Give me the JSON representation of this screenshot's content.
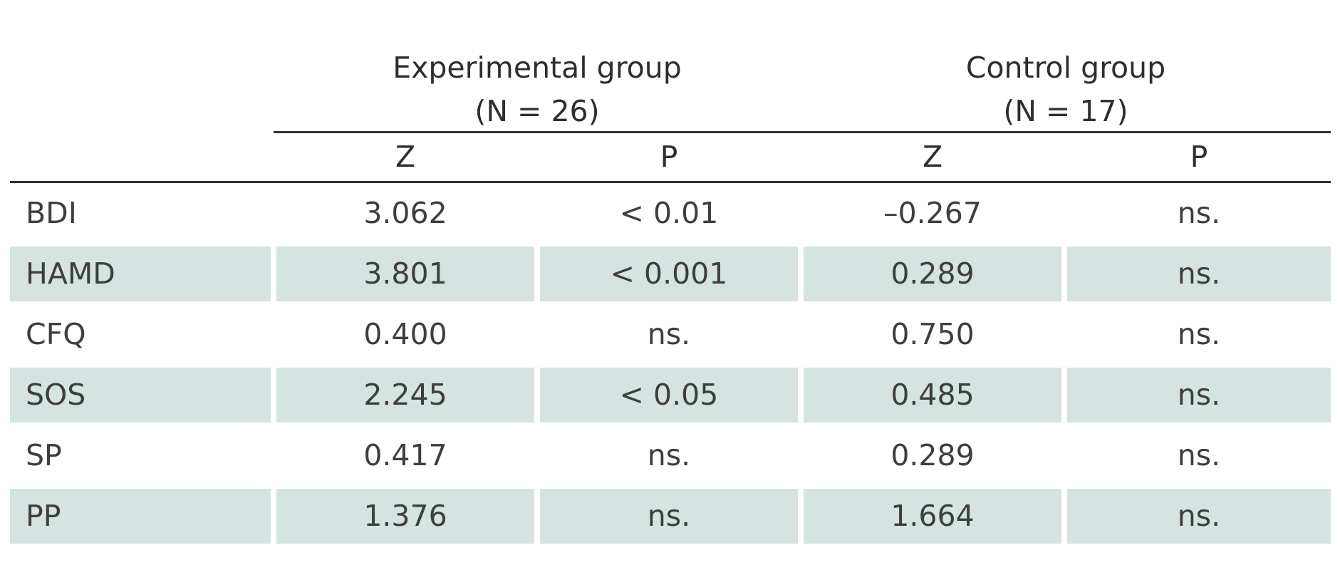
{
  "table": {
    "groups": [
      {
        "name": "Experimental group",
        "n": "(N = 26)"
      },
      {
        "name": "Control group",
        "n": "(N = 17)"
      }
    ],
    "subheaders": [
      "Z",
      "P",
      "Z",
      "P"
    ],
    "rows": [
      {
        "label": "BDI",
        "exp_z": "3.062",
        "exp_p": "< 0.01",
        "ctl_z": "–0.267",
        "ctl_p": "ns."
      },
      {
        "label": "HAMD",
        "exp_z": "3.801",
        "exp_p": "< 0.001",
        "ctl_z": "0.289",
        "ctl_p": "ns."
      },
      {
        "label": "CFQ",
        "exp_z": "0.400",
        "exp_p": "ns.",
        "ctl_z": "0.750",
        "ctl_p": "ns."
      },
      {
        "label": "SOS",
        "exp_z": "2.245",
        "exp_p": "< 0.05",
        "ctl_z": "0.485",
        "ctl_p": "ns."
      },
      {
        "label": "SP",
        "exp_z": "0.417",
        "exp_p": "ns.",
        "ctl_z": "0.289",
        "ctl_p": "ns."
      },
      {
        "label": "PP",
        "exp_z": "1.376",
        "exp_p": "ns.",
        "ctl_z": "1.664",
        "ctl_p": "ns."
      }
    ]
  },
  "colors": {
    "shaded_row": "#d5e3e1",
    "rule": "#333333",
    "text": "#3a3a3a"
  }
}
